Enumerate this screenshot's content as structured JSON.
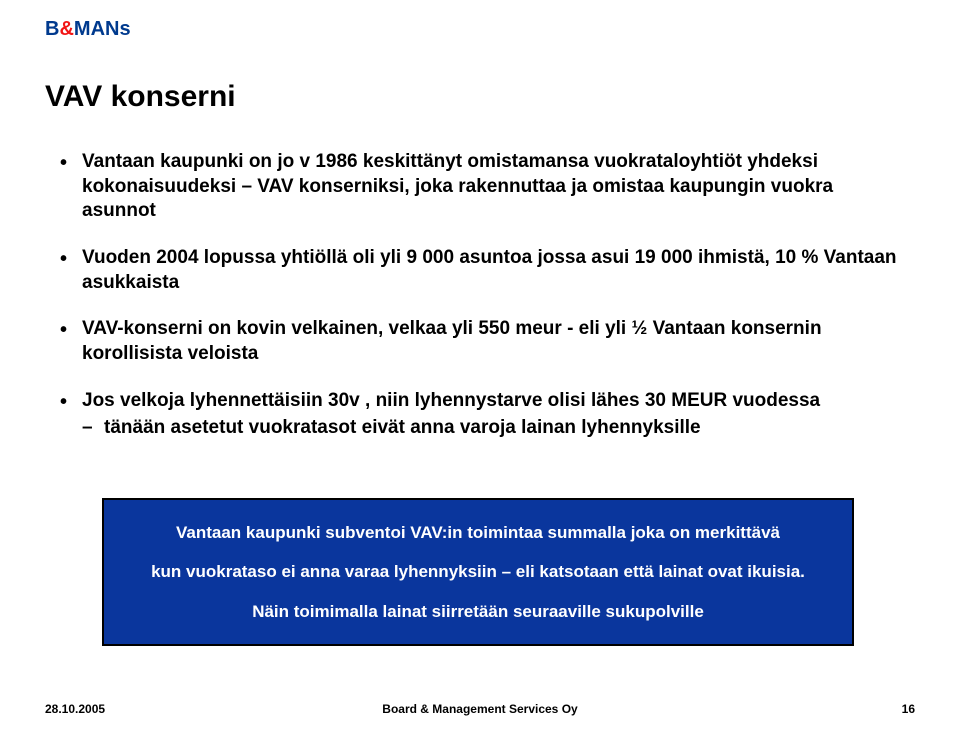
{
  "logo": {
    "b": "B",
    "amp": "&",
    "mans": "MANs"
  },
  "title": "VAV konserni",
  "bullets": [
    {
      "text": "Vantaan kaupunki on jo v 1986 keskittänyt omistamansa vuokrataloyhtiöt yhdeksi kokonaisuudeksi – VAV konserniksi, joka rakennuttaa ja omistaa kaupungin vuokra asunnot",
      "sub": []
    },
    {
      "text": "Vuoden 2004 lopussa yhtiöllä oli yli 9 000 asuntoa jossa asui 19 000 ihmistä, 10 % Vantaan asukkaista",
      "sub": []
    },
    {
      "text": "VAV-konserni on kovin velkainen, velkaa yli 550 meur - eli yli ½ Vantaan konsernin korollisista veloista",
      "sub": []
    },
    {
      "text": "Jos velkoja lyhennettäisiin 30v , niin lyhennystarve olisi lähes 30 MEUR vuodessa",
      "sub": [
        "tänään asetetut vuokratasot eivät anna varoja lainan lyhennyksille"
      ]
    }
  ],
  "box": {
    "line1": "Vantaan kaupunki subventoi VAV:in toimintaa summalla joka on merkittävä",
    "line2": "kun vuokrataso ei anna varaa lyhennyksiin – eli katsotaan että lainat ovat ikuisia.",
    "line3": "Näin toimimalla lainat siirretään seuraaville sukupolville"
  },
  "footer": {
    "date": "28.10.2005",
    "center": "Board & Management Services Oy",
    "page": "16"
  },
  "colors": {
    "box_bg": "#0a369d",
    "logo_blue": "#003a8e",
    "logo_red": "#f11515"
  }
}
